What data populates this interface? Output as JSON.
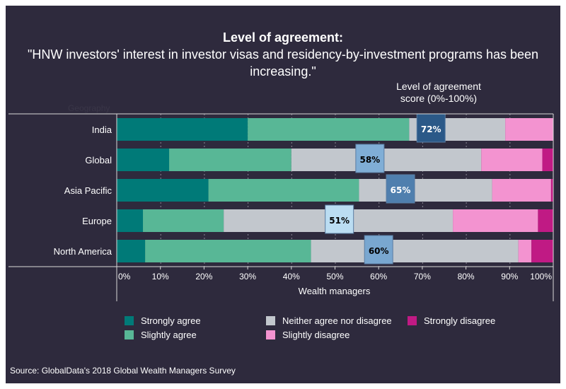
{
  "chart_data": {
    "type": "bar",
    "orientation": "horizontal",
    "stacked": true,
    "title": "Level of agreement:",
    "subtitle": "\"HNW investors' interest in investor visas and residency-by-investment programs has been increasing.\"",
    "score_header": [
      "Level of agreement",
      "score (0%-100%)"
    ],
    "ylabel": "Geography",
    "xlabel": "Wealth managers",
    "xlim": [
      0,
      100
    ],
    "x_ticks": [
      "0%",
      "10%",
      "20%",
      "30%",
      "40%",
      "50%",
      "60%",
      "70%",
      "80%",
      "90%",
      "100%"
    ],
    "grid": "vertical dotted",
    "categories": [
      "India",
      "Global",
      "Asia Pacific",
      "Europe",
      "North America"
    ],
    "series": [
      {
        "name": "Strongly agree",
        "color": "#007a78",
        "values": [
          30,
          12,
          21,
          6,
          6.5
        ]
      },
      {
        "name": "Slightly agree",
        "color": "#58b796",
        "values": [
          37,
          28,
          34.5,
          18.5,
          38
        ]
      },
      {
        "name": "Neither agree nor disagree",
        "color": "#c2c7cd",
        "values": [
          22,
          43.5,
          30.5,
          52.5,
          47.5
        ]
      },
      {
        "name": "Slightly disagree",
        "color": "#f393d0",
        "values": [
          11,
          14,
          13.5,
          19.5,
          3
        ]
      },
      {
        "name": "Strongly disagree",
        "color": "#c01a84",
        "values": [
          0,
          2.5,
          0.5,
          3.5,
          5
        ]
      }
    ],
    "scores": [
      {
        "label": "72%",
        "value": 72,
        "box_color": "#2b5988",
        "text_color": "#ffffff"
      },
      {
        "label": "58%",
        "value": 58,
        "box_color": "#80aed6",
        "text_color": "#000000"
      },
      {
        "label": "65%",
        "value": 65,
        "box_color": "#4f7fae",
        "text_color": "#ffffff"
      },
      {
        "label": "51%",
        "value": 51,
        "box_color": "#bbddf2",
        "text_color": "#000000"
      },
      {
        "label": "60%",
        "value": 60,
        "box_color": "#79a7d0",
        "text_color": "#000000"
      }
    ],
    "legend_position": "bottom"
  },
  "source": "Source: GlobalData's 2018 Global Wealth Managers Survey"
}
